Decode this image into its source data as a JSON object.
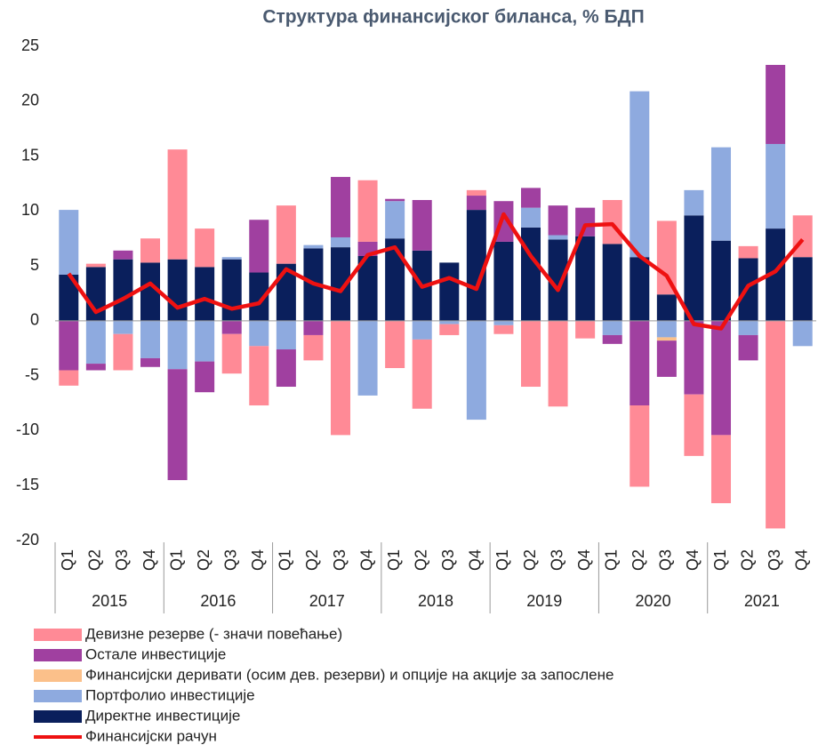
{
  "chart_data": {
    "type": "bar",
    "stacked": true,
    "title": "Структура финансијског биланса, % БДП",
    "categories": [
      "Q1",
      "Q2",
      "Q3",
      "Q4",
      "Q1",
      "Q2",
      "Q3",
      "Q4",
      "Q1",
      "Q2",
      "Q3",
      "Q4",
      "Q1",
      "Q2",
      "Q3",
      "Q4",
      "Q1",
      "Q2",
      "Q3",
      "Q4",
      "Q1",
      "Q2",
      "Q3",
      "Q4",
      "Q1",
      "Q2",
      "Q3",
      "Q4"
    ],
    "groups": [
      "2015",
      "2016",
      "2017",
      "2018",
      "2019",
      "2020",
      "2021"
    ],
    "ylim": [
      -20,
      25
    ],
    "yticks": [
      -20,
      -15,
      -10,
      -5,
      0,
      5,
      10,
      15,
      20,
      25
    ],
    "series": [
      {
        "name": "Девизне резерве (- значи повећање)",
        "color": "#ff8a96",
        "values": [
          -1.4,
          0.3,
          -3.3,
          2.2,
          10.0,
          3.5,
          -3.6,
          -5.4,
          5.3,
          -2.3,
          -10.4,
          5.6,
          -4.3,
          -6.3,
          -1.0,
          0.5,
          -0.8,
          -6.0,
          -7.8,
          -1.6,
          4.0,
          -7.4,
          6.7,
          -5.6,
          -6.2,
          1.1,
          -18.9,
          3.8
        ]
      },
      {
        "name": "Остале инвестиције",
        "color": "#a040a0",
        "values": [
          -4.5,
          -0.6,
          0.8,
          -0.8,
          -10.1,
          -2.8,
          -1.2,
          4.8,
          -3.4,
          -1.3,
          5.5,
          1.3,
          0.2,
          4.6,
          0,
          1.3,
          3.7,
          1.8,
          2.7,
          2.6,
          -0.8,
          -7.7,
          -3.3,
          -6.7,
          -10.4,
          -2.3,
          7.2,
          0
        ]
      },
      {
        "name": "Финансијски деривати (осим дев. резерви) и опције на акције за запослене",
        "color": "#fbc08a",
        "values": [
          0,
          0,
          0,
          0,
          0,
          0,
          0,
          0,
          0,
          0,
          0,
          0,
          0,
          0,
          0,
          0,
          0,
          0,
          0,
          0,
          0,
          0,
          -0.3,
          0,
          0,
          0,
          0,
          0
        ]
      },
      {
        "name": "Портфолио инвестиције",
        "color": "#8eaadf",
        "values": [
          5.9,
          -3.9,
          -1.2,
          -3.4,
          -4.4,
          -3.7,
          0.2,
          -2.3,
          -2.6,
          0.3,
          0.9,
          -6.8,
          3.4,
          -1.7,
          -0.3,
          -9.0,
          -0.4,
          1.8,
          0.4,
          0,
          -1.3,
          15.1,
          -1.5,
          2.3,
          8.5,
          -1.3,
          7.7,
          -2.3
        ]
      },
      {
        "name": "Директне инвестиције",
        "color": "#0a1f5c",
        "values": [
          4.2,
          4.9,
          5.6,
          5.3,
          5.6,
          4.9,
          5.6,
          4.4,
          5.2,
          6.6,
          6.7,
          5.9,
          7.5,
          6.4,
          5.3,
          10.1,
          7.2,
          8.5,
          7.4,
          7.7,
          7.0,
          5.8,
          2.4,
          9.6,
          7.3,
          5.7,
          8.4,
          5.8
        ]
      },
      {
        "name": "Финансијски рачун",
        "type": "line",
        "color": "#ee1111",
        "values": [
          4.3,
          0.8,
          2.0,
          3.4,
          1.2,
          2.0,
          1.1,
          1.6,
          4.7,
          3.4,
          2.7,
          6.0,
          6.7,
          3.1,
          3.9,
          2.9,
          9.7,
          5.9,
          2.8,
          8.7,
          8.8,
          5.9,
          4.1,
          -0.3,
          -0.7,
          3.2,
          4.5,
          7.4
        ]
      }
    ]
  }
}
